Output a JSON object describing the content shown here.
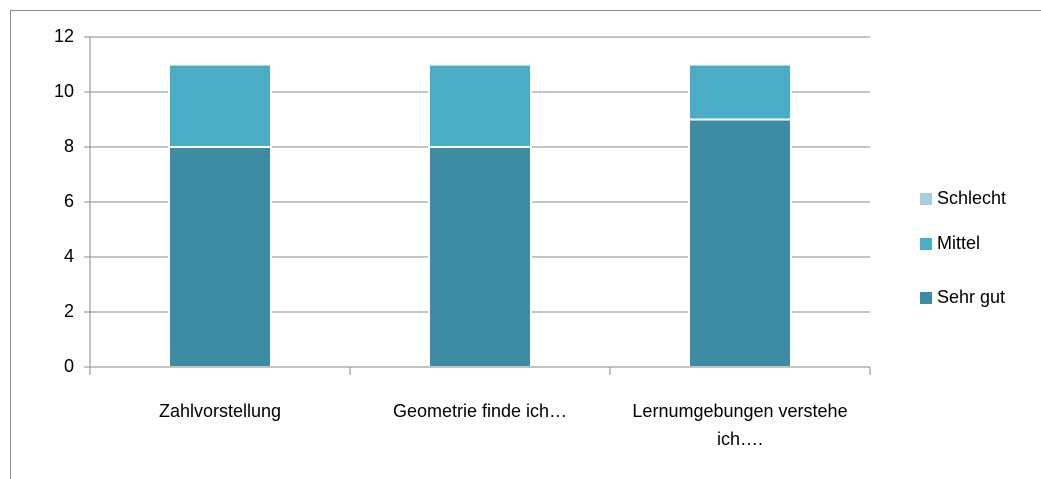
{
  "chart_data": {
    "type": "stacked_bar",
    "categories": [
      "Zahlvorstellung",
      "Geometrie finde ich…",
      "Lernumgebungen verstehe ich…."
    ],
    "series": [
      {
        "name": "Sehr gut",
        "color": "#3d8ca3",
        "values": [
          8,
          8,
          9
        ]
      },
      {
        "name": "Mittel",
        "color": "#4bacc6",
        "values": [
          3,
          3,
          2
        ]
      },
      {
        "name": "Schlecht",
        "color": "#a5cfe0",
        "values": [
          0,
          0,
          0
        ]
      }
    ],
    "ylim": [
      0,
      12
    ],
    "yticks": [
      0,
      2,
      4,
      6,
      8,
      10,
      12
    ],
    "grid": true,
    "legend": "right"
  }
}
